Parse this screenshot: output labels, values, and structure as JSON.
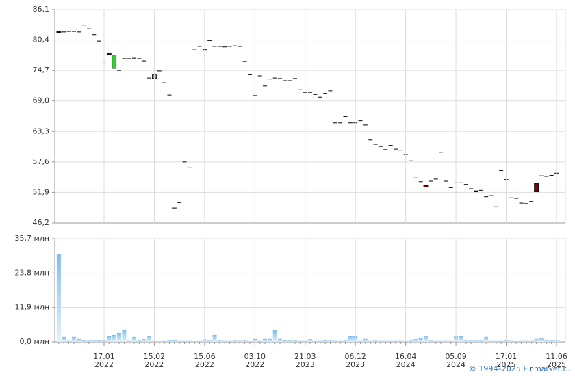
{
  "chart_data": [
    {
      "type": "candlestick",
      "open": [
        82.0,
        81.9,
        82.0,
        82.0,
        81.9,
        83.2,
        82.5,
        81.4,
        80.2,
        76.3,
        78.0,
        75.1,
        74.7,
        76.9,
        76.9,
        77.0,
        76.9,
        76.5,
        73.3,
        73.2,
        74.6,
        72.4,
        70.1,
        49.0,
        50.0,
        57.6,
        56.6,
        78.7,
        79.2,
        78.6,
        80.3,
        79.2,
        79.2,
        79.1,
        79.2,
        79.3,
        79.2,
        76.4,
        74.0,
        70.0,
        73.7,
        71.8,
        73.1,
        73.3,
        73.2,
        72.8,
        72.8,
        73.2,
        71.1,
        70.6,
        70.6,
        70.2,
        69.7,
        70.4,
        70.9,
        64.9,
        64.9,
        66.1,
        64.9,
        64.9,
        65.3,
        64.5,
        61.7,
        60.9,
        60.5,
        59.9,
        60.7,
        60.0,
        59.8,
        59.0,
        57.8,
        54.6,
        53.9,
        53.2,
        54.0,
        54.4,
        59.4,
        54.0,
        52.8,
        53.7,
        53.7,
        53.4,
        52.6,
        52.2,
        52.3,
        51.1,
        51.3,
        49.3,
        56.0,
        54.3,
        50.9,
        50.8,
        49.9,
        49.8,
        50.2,
        53.6,
        55.0,
        54.9,
        55.1,
        55.5
      ],
      "close": [
        81.8,
        81.9,
        82.0,
        82.0,
        81.9,
        83.2,
        82.5,
        81.4,
        80.2,
        76.3,
        77.7,
        77.6,
        74.7,
        76.9,
        76.9,
        77.0,
        76.9,
        76.5,
        73.2,
        74.0,
        74.6,
        72.4,
        70.1,
        49.0,
        50.0,
        57.6,
        56.6,
        78.7,
        79.2,
        78.6,
        80.3,
        79.2,
        79.2,
        79.1,
        79.2,
        79.3,
        79.2,
        76.4,
        74.0,
        70.0,
        73.7,
        71.8,
        73.1,
        73.3,
        73.2,
        72.8,
        72.8,
        73.2,
        71.1,
        70.6,
        70.6,
        70.2,
        69.7,
        70.4,
        70.9,
        64.9,
        64.9,
        66.1,
        64.9,
        64.9,
        65.3,
        64.5,
        61.7,
        60.9,
        60.5,
        59.9,
        60.7,
        60.0,
        59.8,
        59.0,
        57.8,
        54.6,
        53.9,
        52.9,
        54.0,
        54.4,
        59.4,
        54.0,
        52.8,
        53.7,
        53.7,
        53.4,
        52.6,
        52.0,
        52.3,
        51.1,
        51.3,
        49.3,
        56.0,
        54.3,
        50.9,
        50.8,
        49.9,
        49.8,
        50.2,
        52.0,
        55.0,
        54.9,
        55.1,
        55.5
      ],
      "up_color": "#33cc33",
      "down_color": "#880000",
      "ylim": [
        46.2,
        86.1
      ],
      "yticks": [
        {
          "value": 46.2,
          "label": "46,2"
        },
        {
          "value": 51.9,
          "label": "51,9"
        },
        {
          "value": 57.6,
          "label": "57,6"
        },
        {
          "value": 63.3,
          "label": "63,3"
        },
        {
          "value": 69.0,
          "label": "69,0"
        },
        {
          "value": 74.7,
          "label": "74,7"
        },
        {
          "value": 80.4,
          "label": "80,4"
        },
        {
          "value": 86.1,
          "label": "86,1"
        }
      ],
      "grid": true
    },
    {
      "type": "bar",
      "categories": [
        null,
        null,
        null,
        null,
        null,
        null,
        null,
        null,
        null,
        "17.01\n2022",
        null,
        null,
        null,
        null,
        null,
        null,
        null,
        null,
        null,
        "15.02\n2022",
        null,
        null,
        null,
        null,
        null,
        null,
        null,
        null,
        null,
        "15.06\n2022",
        null,
        null,
        null,
        null,
        null,
        null,
        null,
        null,
        null,
        "03.10\n2022",
        null,
        null,
        null,
        null,
        null,
        null,
        null,
        null,
        null,
        "21.03\n2023",
        null,
        null,
        null,
        null,
        null,
        null,
        null,
        null,
        null,
        "06.12\n2023",
        null,
        null,
        null,
        null,
        null,
        null,
        null,
        null,
        null,
        "16.04\n2024",
        null,
        null,
        null,
        null,
        null,
        null,
        null,
        null,
        null,
        "05.09\n2024",
        null,
        null,
        null,
        null,
        null,
        null,
        null,
        null,
        null,
        "17.01\n2025",
        null,
        null,
        null,
        null,
        null,
        null,
        null,
        null,
        null,
        "11.06\n2025"
      ],
      "values": [
        30.5,
        1.7,
        0.3,
        1.7,
        1.0,
        0.5,
        0.4,
        0.4,
        0.5,
        0.5,
        1.9,
        2.4,
        3.1,
        4.3,
        0.3,
        1.7,
        0.4,
        0.9,
        2.1,
        0.3,
        0.2,
        0.3,
        0.4,
        0.5,
        0.3,
        0.3,
        0.3,
        0.2,
        0.3,
        0.8,
        0.4,
        2.4,
        0.4,
        0.3,
        0.3,
        0.4,
        0.3,
        0.4,
        0.2,
        1.0,
        0.3,
        1.0,
        1.0,
        4.0,
        1.0,
        0.5,
        0.6,
        0.6,
        0.3,
        0.3,
        0.9,
        0.3,
        0.3,
        0.5,
        0.4,
        0.3,
        0.3,
        0.4,
        1.9,
        1.9,
        0.3,
        1.0,
        0.3,
        0.4,
        0.3,
        0.3,
        0.3,
        0.3,
        0.3,
        0.3,
        0.4,
        0.9,
        1.2,
        2.1,
        0.4,
        0.3,
        0.3,
        0.3,
        0.3,
        1.9,
        1.9,
        0.4,
        0.4,
        0.4,
        0.4,
        1.7,
        0.3,
        0.3,
        0.3,
        0.5,
        0.3,
        0.2,
        0.3,
        0.3,
        0.3,
        1.0,
        1.4,
        0.4,
        0.4,
        0.7
      ],
      "color": "#7fbdec",
      "ylim": [
        0.0,
        35.7
      ],
      "yticks": [
        {
          "value": 0.0,
          "label": "0,0 млн"
        },
        {
          "value": 11.9,
          "label": "11,9 млн"
        },
        {
          "value": 23.8,
          "label": "23,8 млн"
        },
        {
          "value": 35.7,
          "label": "35,7 млн"
        }
      ],
      "grid": true
    }
  ],
  "footer": "© 1994–2025 Finmarket.ru"
}
